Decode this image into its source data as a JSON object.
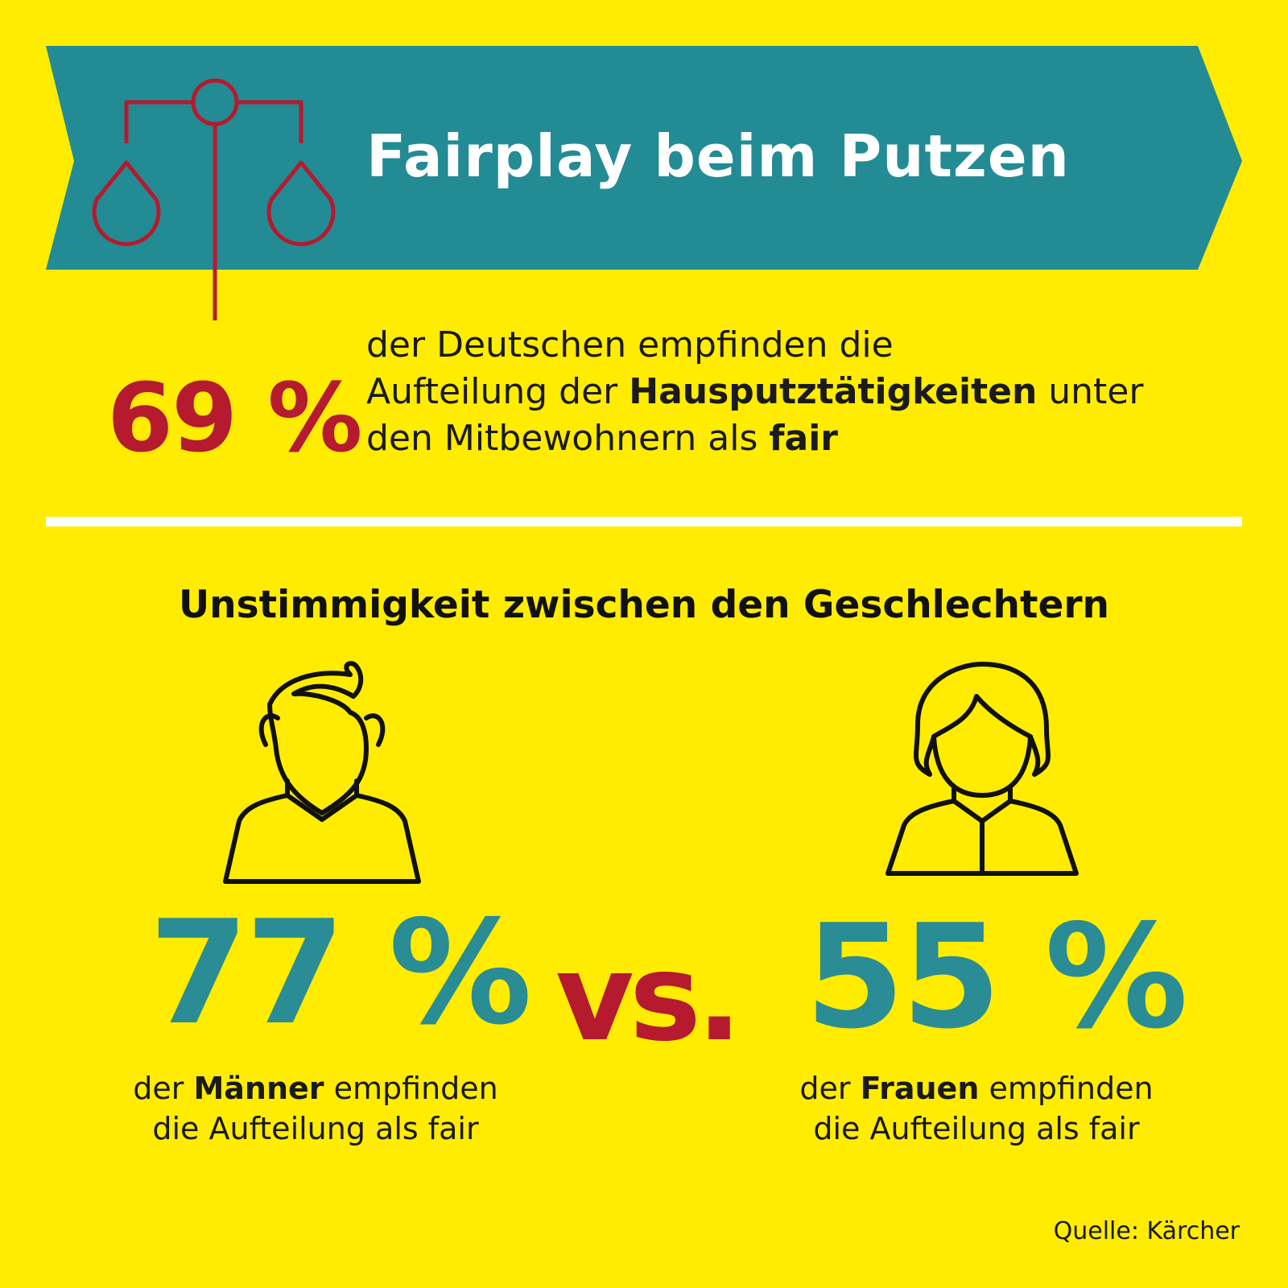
{
  "colors": {
    "background": "#ffec00",
    "banner": "#238b94",
    "accent_red": "#b51a2e",
    "accent_teal": "#2a8c94",
    "divider": "#ffffff"
  },
  "header": {
    "title": "Fairplay beim Putzen",
    "icon": "scale-icon"
  },
  "overall": {
    "value": "69 %",
    "line1": "der Deutschen empfinden die",
    "line2_pre": "Aufteilung der ",
    "line2_bold": "Hausputztätigkeiten",
    "line2_post": " unter",
    "line3_pre": "den Mitbewohnern als ",
    "line3_bold": "fair"
  },
  "section": {
    "heading": "Unstimmigkeit zwischen den Geschlechtern"
  },
  "men": {
    "icon": "man-icon",
    "value": "77 %",
    "line1_pre": "der ",
    "line1_bold": "Männer",
    "line1_post": " empfinden",
    "line2": "die Aufteilung als fair"
  },
  "versus": "vs.",
  "women": {
    "icon": "woman-icon",
    "value": "55 %",
    "line1_pre": "der ",
    "line1_bold": "Frauen",
    "line1_post": " empfinden",
    "line2": "die Aufteilung als fair"
  },
  "source": "Quelle: Kärcher"
}
